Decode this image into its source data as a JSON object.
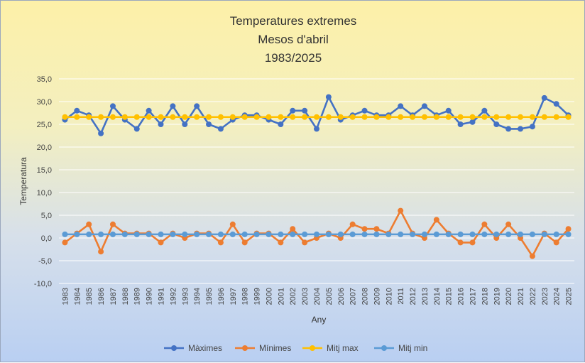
{
  "chart_data": {
    "type": "line",
    "title": [
      "Temperatures extremes",
      "Mesos d'abril",
      "1983/2025"
    ],
    "xlabel": "Any",
    "ylabel": "Temperatura",
    "ylim": [
      -10,
      35
    ],
    "ytick_step": 5,
    "ytick_labels": [
      "-10,0",
      "-5,0",
      "0,0",
      "5,0",
      "10,0",
      "15,0",
      "20,0",
      "25,0",
      "30,0",
      "35,0"
    ],
    "grid": true,
    "legend_position": "bottom",
    "x": [
      "1983",
      "1984",
      "1985",
      "1986",
      "1987",
      "1988",
      "1989",
      "1990",
      "1991",
      "1992",
      "1993",
      "1994",
      "1995",
      "1996",
      "1997",
      "1998",
      "1999",
      "2000",
      "2001",
      "2002",
      "2003",
      "2004",
      "2005",
      "2006",
      "2007",
      "2008",
      "2009",
      "2010",
      "2011",
      "2012",
      "2013",
      "2014",
      "2015",
      "2016",
      "2017",
      "2018",
      "2019",
      "2020",
      "2021",
      "2022",
      "2023",
      "2024",
      "2025"
    ],
    "series": [
      {
        "name": "Màximes",
        "color": "#4472c4",
        "values": [
          26,
          28,
          27,
          23,
          29,
          26,
          24,
          28,
          25,
          29,
          25,
          29,
          25,
          24,
          26,
          27,
          27,
          26,
          25,
          28,
          28,
          24,
          31,
          26,
          27,
          28,
          27,
          27,
          29,
          27,
          29,
          27,
          28,
          25,
          25.5,
          28,
          25,
          24,
          24,
          24.5,
          30.8,
          29.5,
          27
        ]
      },
      {
        "name": "Mínimes",
        "color": "#ed7d31",
        "values": [
          -1,
          1,
          3,
          -3,
          3,
          1,
          1,
          1,
          -1,
          1,
          0,
          1,
          1,
          -1,
          3,
          -1,
          1,
          1,
          -1,
          2,
          -1,
          0,
          1,
          0,
          3,
          2,
          2,
          1,
          6,
          1,
          0,
          4,
          1,
          -1,
          -1,
          3,
          0,
          3,
          0,
          -4,
          1,
          -1,
          2
        ]
      },
      {
        "name": "Mitj max",
        "color": "#ffc000",
        "values": [
          26.6,
          26.6,
          26.6,
          26.6,
          26.6,
          26.6,
          26.6,
          26.6,
          26.6,
          26.6,
          26.6,
          26.6,
          26.6,
          26.6,
          26.6,
          26.6,
          26.6,
          26.6,
          26.6,
          26.6,
          26.6,
          26.6,
          26.6,
          26.6,
          26.6,
          26.6,
          26.6,
          26.6,
          26.6,
          26.6,
          26.6,
          26.6,
          26.6,
          26.6,
          26.6,
          26.6,
          26.6,
          26.6,
          26.6,
          26.6,
          26.6,
          26.6,
          26.6
        ]
      },
      {
        "name": "Mitj min",
        "color": "#5b9bd5",
        "values": [
          0.8,
          0.8,
          0.8,
          0.8,
          0.8,
          0.8,
          0.8,
          0.8,
          0.8,
          0.8,
          0.8,
          0.8,
          0.8,
          0.8,
          0.8,
          0.8,
          0.8,
          0.8,
          0.8,
          0.8,
          0.8,
          0.8,
          0.8,
          0.8,
          0.8,
          0.8,
          0.8,
          0.8,
          0.8,
          0.8,
          0.8,
          0.8,
          0.8,
          0.8,
          0.8,
          0.8,
          0.8,
          0.8,
          0.8,
          0.8,
          0.8,
          0.8,
          0.8
        ]
      }
    ]
  }
}
